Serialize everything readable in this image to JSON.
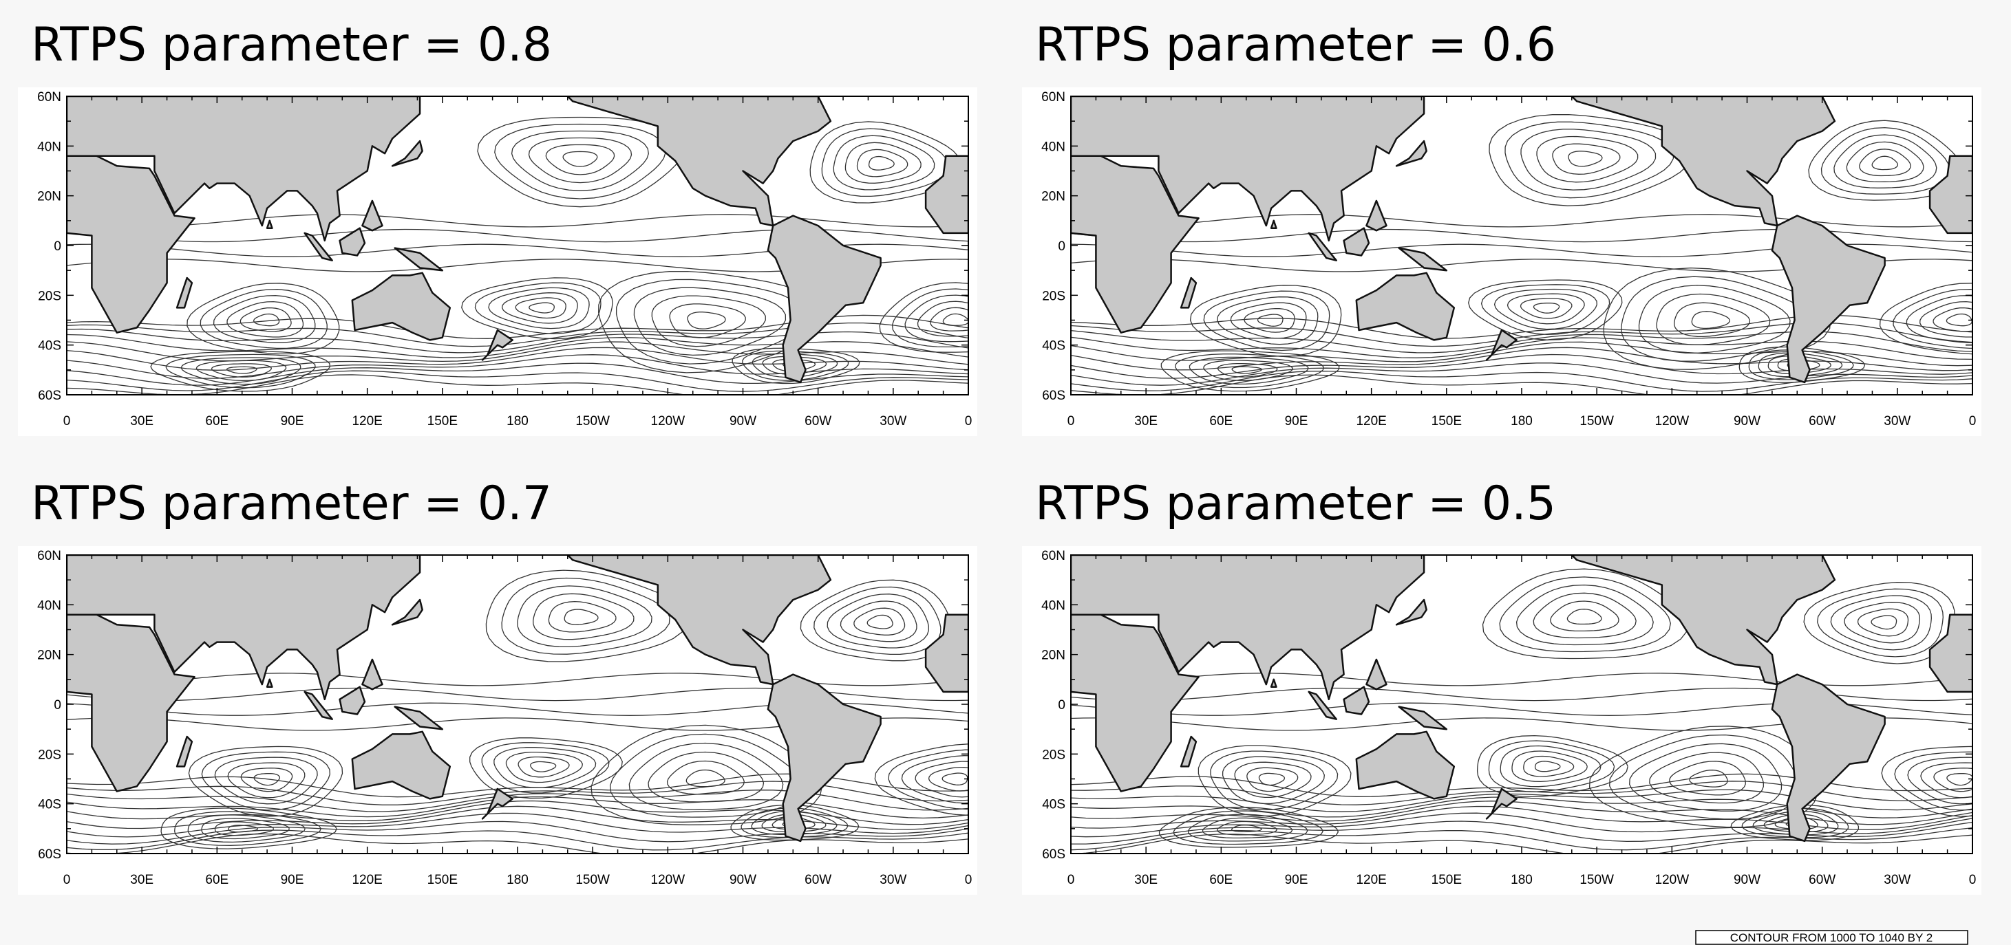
{
  "panels": [
    {
      "title": "RTPS parameter = 0.8"
    },
    {
      "title": "RTPS parameter = 0.6"
    },
    {
      "title": "RTPS parameter = 0.7"
    },
    {
      "title": "RTPS parameter = 0.5"
    }
  ],
  "lat_labels": [
    "60N",
    "40N",
    "20N",
    "0",
    "20S",
    "40S",
    "60S"
  ],
  "lon_labels": [
    "0",
    "30E",
    "60E",
    "90E",
    "120E",
    "150E",
    "180",
    "150W",
    "120W",
    "90W",
    "60W",
    "30W",
    "0"
  ],
  "footer": "CONTOUR FROM 1000 TO 1040 BY 2"
}
